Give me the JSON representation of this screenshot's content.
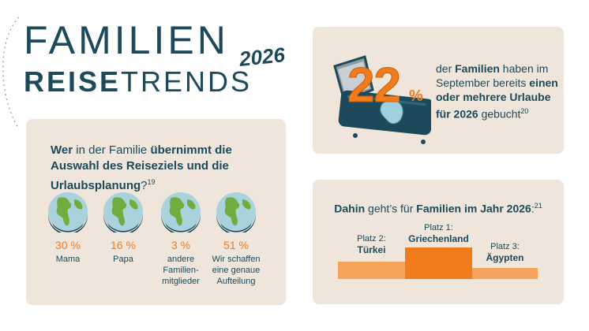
{
  "header": {
    "title_line1": "FAMILIEN",
    "title_year": "2026",
    "title_line2_bold": "REISE",
    "title_line2_light": "TRENDS"
  },
  "survey": {
    "question_pre": "Wer",
    "question_b1": " in der Familie ",
    "question_b1_bold": "übernimmt die Auswahl des Reiseziels und die Urlaubsplanung",
    "question_end": "?",
    "footnote": "19",
    "items": [
      {
        "percent": "30 %",
        "label": "Mama"
      },
      {
        "percent": "16 %",
        "label": "Papa"
      },
      {
        "percent": "3 %",
        "label": "andere Familien-mitglieder"
      },
      {
        "percent": "51 %",
        "label": "Wir schaffen eine genaue Aufteilung"
      }
    ]
  },
  "booking": {
    "number": "22",
    "percent_sign": "%",
    "text_pre": "der ",
    "text_bold1": "Familien",
    "text_mid": " haben im September bereits ",
    "text_bold2": "einen oder mehrere Urlaube für 2026",
    "text_end": " gebucht",
    "footnote": "20"
  },
  "destinations": {
    "title_bold": "Dahin",
    "title_mid": " geht’s für ",
    "title_bold2": "Familien im Jahr 2026",
    "title_end": ":",
    "footnote": "21",
    "places": [
      {
        "rank": "Platz 2:",
        "country": "Türkei"
      },
      {
        "rank": "Platz 1:",
        "country": "Griechenland"
      },
      {
        "rank": "Platz 3:",
        "country": "Ägypten"
      }
    ]
  },
  "colors": {
    "primary": "#1c4a5b",
    "accent": "#f07c1e",
    "accent_light": "#f5a25a",
    "card_bg": "#efe5da",
    "globe_ocean": "#a9d2dc",
    "globe_land": "#6fae3e"
  },
  "icons": [
    "globe-icon",
    "suitcase-icon"
  ]
}
